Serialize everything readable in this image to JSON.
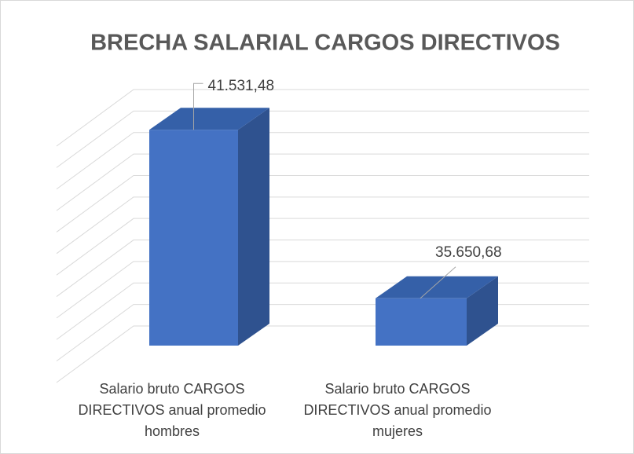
{
  "chart_data": {
    "type": "bar3d",
    "title": "BRECHA SALARIAL CARGOS DIRECTIVOS",
    "categories": [
      "Salario bruto CARGOS DIRECTIVOS anual promedio hombres",
      "Salario bruto CARGOS DIRECTIVOS anual promedio mujeres"
    ],
    "values": [
      41531.48,
      35650.68
    ],
    "value_labels": [
      "41.531,48",
      "35.650,68"
    ],
    "color": "#4472c4",
    "ylim": [
      34000,
      42250
    ],
    "yticks": [
      34000,
      34750,
      35500,
      36250,
      37000,
      37750,
      38500,
      39250,
      40000,
      40750,
      41500,
      42250
    ],
    "grid": true
  }
}
